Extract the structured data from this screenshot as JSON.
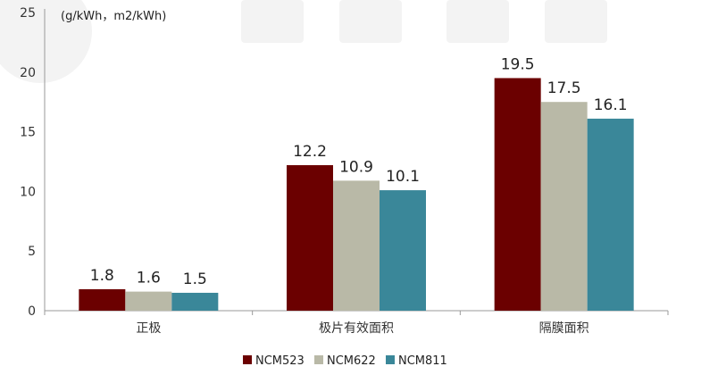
{
  "chart_data": {
    "type": "bar",
    "title": "",
    "unit_label": "(g/kWh，m2/kWh)",
    "xlabel": "",
    "ylabel": "",
    "ylim": [
      0,
      25
    ],
    "yticks": [
      0,
      5,
      10,
      15,
      20,
      25
    ],
    "grid": false,
    "legend_position": "bottom",
    "categories": [
      "正极",
      "极片有效面积",
      "隔膜面积"
    ],
    "series": [
      {
        "name": "NCM523",
        "color": "#6b0000",
        "values": [
          1.8,
          12.2,
          19.5
        ]
      },
      {
        "name": "NCM622",
        "color": "#b9b9a7",
        "values": [
          1.6,
          10.9,
          17.5
        ]
      },
      {
        "name": "NCM811",
        "color": "#3a8799",
        "values": [
          1.5,
          10.1,
          16.1
        ]
      }
    ]
  }
}
